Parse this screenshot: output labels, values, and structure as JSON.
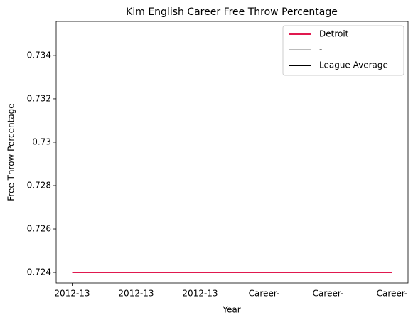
{
  "chart_data": {
    "type": "line",
    "title": "Kim English  Career Free Throw Percentage",
    "xlabel": "Year",
    "ylabel": "Free Throw Percentage",
    "categories": [
      "2012-13",
      "2012-13",
      "2012-13",
      "Career-",
      "Career-",
      "Career-"
    ],
    "series": [
      {
        "name": "Detroit",
        "color": "#e0194f",
        "values": [
          0.724,
          0.724,
          0.724,
          0.724,
          0.724,
          0.724
        ]
      },
      {
        "name": "-",
        "color": "#bbbbbb",
        "values": [
          null,
          null,
          null,
          null,
          null,
          null
        ]
      },
      {
        "name": "League Average",
        "color": "#000000",
        "values": [
          null,
          null,
          null,
          null,
          null,
          null
        ]
      }
    ],
    "ylim": [
      0.72351,
      0.73557
    ],
    "yticks": [
      0.724,
      0.726,
      0.728,
      0.73,
      0.732,
      0.734
    ],
    "legend": "upper right",
    "grid": false
  }
}
